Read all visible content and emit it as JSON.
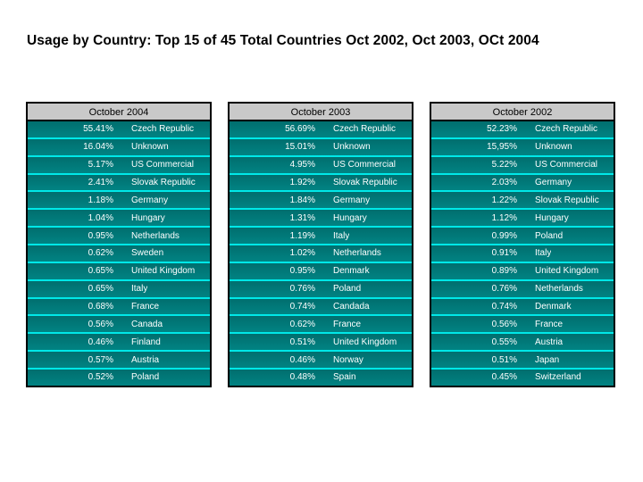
{
  "title": "Usage by Country: Top 15 of 45 Total Countries Oct 2002, Oct 2003, OCt 2004",
  "colors": {
    "table_body_teal": "#007d7d",
    "row_separator_cyan": "#00e8e8",
    "header_gray": "#c9c9c9",
    "border_black": "#000000",
    "row_text_white": "#ffffff"
  },
  "tables": [
    {
      "header": "October 2004",
      "rows": [
        {
          "pct": "55.41%",
          "country": "Czech Republic"
        },
        {
          "pct": "16.04%",
          "country": "Unknown"
        },
        {
          "pct": "5.17%",
          "country": "US Commercial"
        },
        {
          "pct": "2.41%",
          "country": "Slovak Republic"
        },
        {
          "pct": "1.18%",
          "country": "Germany"
        },
        {
          "pct": "1.04%",
          "country": "Hungary"
        },
        {
          "pct": "0.95%",
          "country": "Netherlands"
        },
        {
          "pct": "0.62%",
          "country": "Sweden"
        },
        {
          "pct": "0.65%",
          "country": "United Kingdom"
        },
        {
          "pct": "0.65%",
          "country": "Italy"
        },
        {
          "pct": "0.68%",
          "country": "France"
        },
        {
          "pct": "0.56%",
          "country": "Canada"
        },
        {
          "pct": "0.46%",
          "country": "Finland"
        },
        {
          "pct": "0.57%",
          "country": "Austria"
        },
        {
          "pct": "0.52%",
          "country": "Poland"
        }
      ]
    },
    {
      "header": "October 2003",
      "rows": [
        {
          "pct": "56.69%",
          "country": "Czech Republic"
        },
        {
          "pct": "15.01%",
          "country": "Unknown"
        },
        {
          "pct": "4.95%",
          "country": "US Commercial"
        },
        {
          "pct": "1.92%",
          "country": "Slovak Republic"
        },
        {
          "pct": "1.84%",
          "country": "Germany"
        },
        {
          "pct": "1.31%",
          "country": "Hungary"
        },
        {
          "pct": "1.19%",
          "country": "Italy"
        },
        {
          "pct": "1.02%",
          "country": "Netherlands"
        },
        {
          "pct": "0.95%",
          "country": "Denmark"
        },
        {
          "pct": "0.76%",
          "country": "Poland"
        },
        {
          "pct": "0.74%",
          "country": "Candada"
        },
        {
          "pct": "0.62%",
          "country": "France"
        },
        {
          "pct": "0.51%",
          "country": "United Kingdom"
        },
        {
          "pct": "0.46%",
          "country": "Norway"
        },
        {
          "pct": "0.48%",
          "country": "Spain"
        }
      ]
    },
    {
      "header": "October 2002",
      "rows": [
        {
          "pct": "52.23%",
          "country": "Czech Republic"
        },
        {
          "pct": "15,95%",
          "country": "Unknown"
        },
        {
          "pct": "5.22%",
          "country": "US Commercial"
        },
        {
          "pct": "2.03%",
          "country": "Germany"
        },
        {
          "pct": "1.22%",
          "country": "Slovak Republic"
        },
        {
          "pct": "1.12%",
          "country": "Hungary"
        },
        {
          "pct": "0.99%",
          "country": "Poland"
        },
        {
          "pct": "0.91%",
          "country": "Italy"
        },
        {
          "pct": "0.89%",
          "country": "United Kingdom"
        },
        {
          "pct": "0.76%",
          "country": "Netherlands"
        },
        {
          "pct": "0.74%",
          "country": "Denmark"
        },
        {
          "pct": "0.56%",
          "country": "France"
        },
        {
          "pct": "0.55%",
          "country": "Austria"
        },
        {
          "pct": "0.51%",
          "country": "Japan"
        },
        {
          "pct": "0.45%",
          "country": "Switzerland"
        }
      ]
    }
  ]
}
